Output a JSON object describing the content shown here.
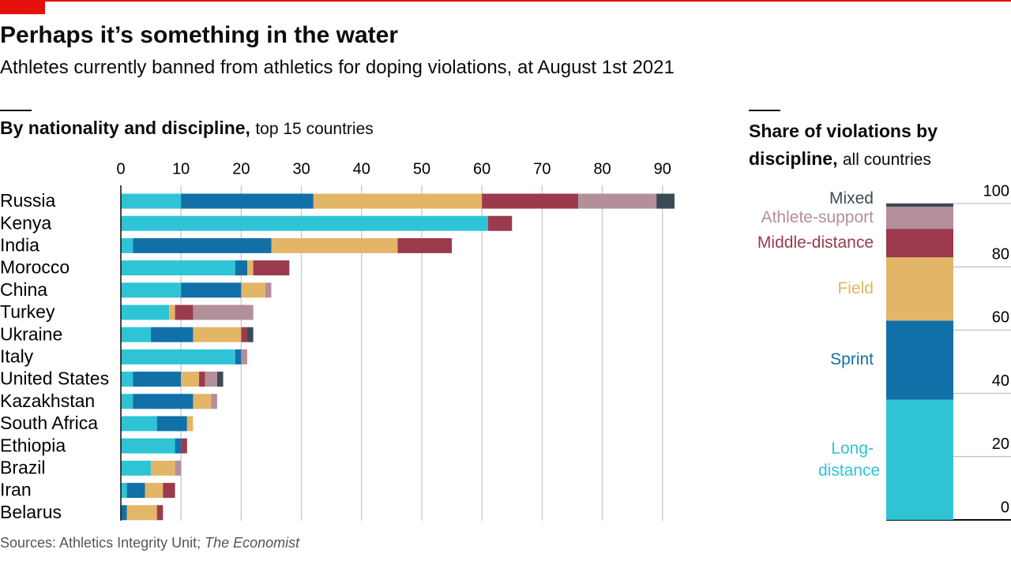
{
  "header": {
    "title": "Perhaps it’s something in the water",
    "subtitle": "Athletes currently banned from athletics for doping violations, at August 1st 2021"
  },
  "source": {
    "text": "Sources: Athletics Integrity Unit; ",
    "italic": "The Economist"
  },
  "chart_data": [
    {
      "type": "stacked-hbar",
      "title": "By nationality and discipline,",
      "subtitle": "top 15 countries",
      "categories": [
        "Russia",
        "Kenya",
        "India",
        "Morocco",
        "China",
        "Turkey",
        "Ukraine",
        "Italy",
        "United States",
        "Kazakhstan",
        "South Africa",
        "Ethiopia",
        "Brazil",
        "Iran",
        "Belarus"
      ],
      "series": [
        {
          "color": "#2ec4d6",
          "values": [
            10,
            61,
            2,
            19,
            10,
            8,
            5,
            19,
            2,
            2,
            6,
            9,
            5,
            1,
            0
          ]
        },
        {
          "color": "#1270a8",
          "values": [
            22,
            0,
            23,
            2,
            10,
            0,
            7,
            1,
            8,
            10,
            5,
            1,
            0,
            3,
            1
          ]
        },
        {
          "color": "#e3b567",
          "values": [
            28,
            0,
            21,
            1,
            4,
            1,
            8,
            0,
            3,
            3,
            1,
            0,
            4,
            3,
            5
          ]
        },
        {
          "color": "#9b3a4d",
          "values": [
            16,
            4,
            9,
            6,
            0,
            3,
            1,
            0,
            1,
            0,
            0,
            1,
            0,
            2,
            1
          ]
        },
        {
          "color": "#b38f9a",
          "values": [
            13,
            0,
            0,
            0,
            1,
            10,
            0,
            1,
            2,
            1,
            0,
            0,
            1,
            0,
            0
          ]
        },
        {
          "color": "#3c4a55",
          "values": [
            3,
            0,
            0,
            0,
            0,
            0,
            1,
            0,
            1,
            0,
            0,
            0,
            0,
            0,
            0
          ]
        }
      ],
      "xlim": [
        0,
        92
      ],
      "xticks": [
        0,
        10,
        20,
        30,
        40,
        50,
        60,
        70,
        80,
        90
      ],
      "grid": true
    },
    {
      "type": "stacked-share",
      "title": "Share of violations by discipline,",
      "subtitle": "all countries",
      "series": [
        {
          "name": "Long-distance",
          "color": "#2ec4d6",
          "values": [
            38
          ]
        },
        {
          "name": "Sprint",
          "color": "#1270a8",
          "values": [
            25
          ]
        },
        {
          "name": "Field",
          "color": "#e3b567",
          "values": [
            20
          ]
        },
        {
          "name": "Middle-distance",
          "color": "#9b3a4d",
          "values": [
            9
          ]
        },
        {
          "name": "Athlete-support",
          "color": "#b38f9a",
          "values": [
            7
          ]
        },
        {
          "name": "Mixed",
          "color": "#3c4a55",
          "values": [
            1
          ]
        }
      ],
      "ylim": [
        0,
        100
      ],
      "yticks": [
        0,
        20,
        40,
        60,
        80,
        100
      ],
      "grid": true
    }
  ]
}
